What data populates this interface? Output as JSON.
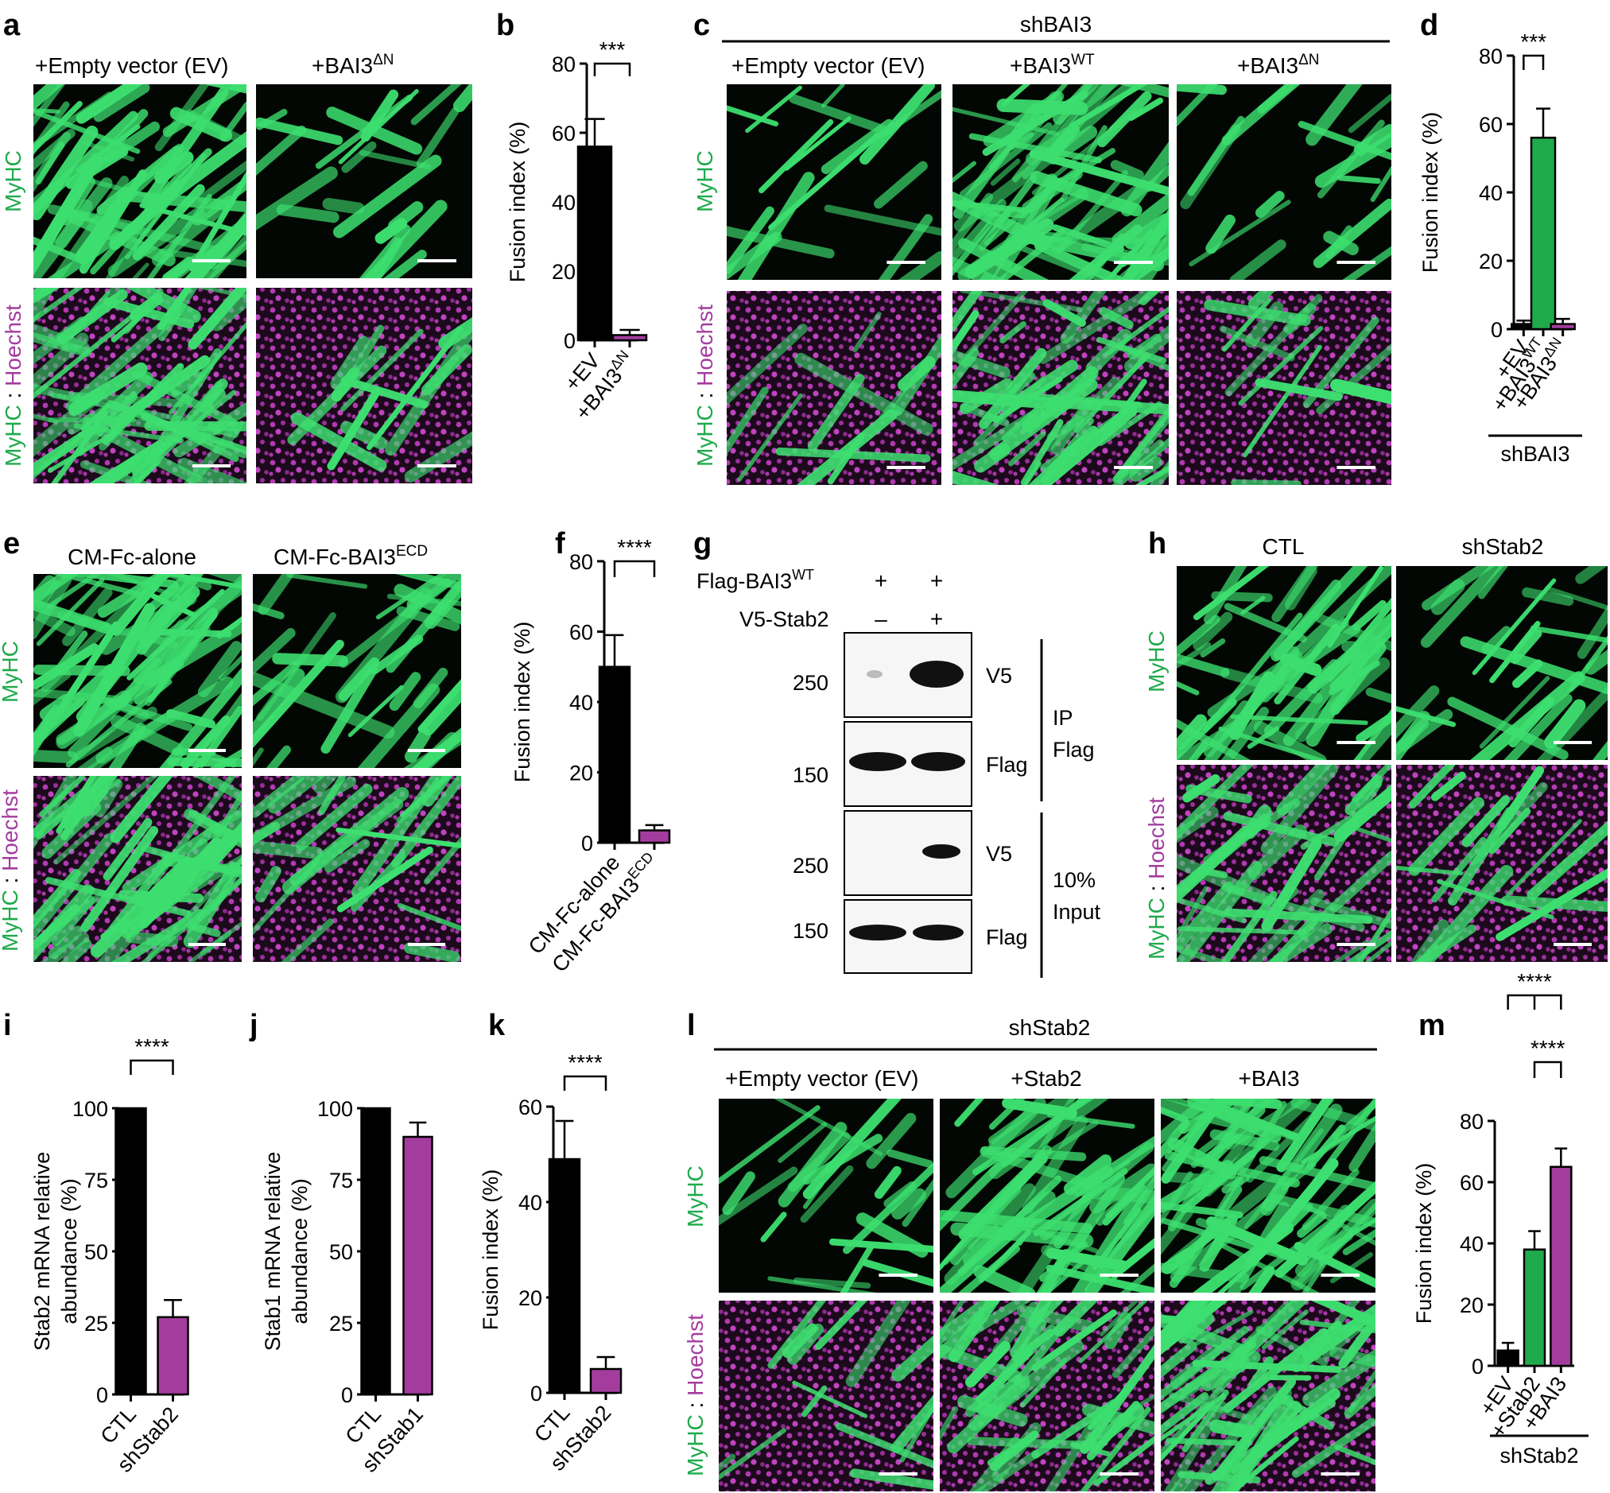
{
  "panel_letters": [
    "a",
    "b",
    "c",
    "d",
    "e",
    "f",
    "g",
    "h",
    "i",
    "j",
    "k",
    "l",
    "m"
  ],
  "colors": {
    "black": "#000000",
    "green": "#1faa4c",
    "magenta": "#a43c9e",
    "micro_green": "#3de070",
    "micro_magenta": "#b23ab2"
  },
  "micrograph": {
    "row_myhc": "MyHC",
    "row_merge_a": "MyHC",
    "row_merge_sep": " : ",
    "row_merge_b": "Hoechst"
  },
  "panel_a": {
    "col1": "+Empty vector (EV)",
    "col2": "+BAI3",
    "col2_sup": "ΔN"
  },
  "panel_c": {
    "header": "shBAI3",
    "col1": "+Empty vector (EV)",
    "col2": "+BAI3",
    "col2_sup": "WT",
    "col3": "+BAI3",
    "col3_sup": "ΔN"
  },
  "panel_e": {
    "col1": "CM-Fc-alone",
    "col2": "CM-Fc-BAI3",
    "col2_sup": "ECD"
  },
  "panel_h": {
    "col1": "CTL",
    "col2": "shStab2"
  },
  "panel_l": {
    "header": "shStab2",
    "col1": "+Empty vector (EV)",
    "col2": "+Stab2",
    "col3": "+BAI3"
  },
  "panel_g": {
    "row1_label": "Flag-BAI3",
    "row1_sup": "WT",
    "row1_marks": [
      "+",
      "+"
    ],
    "row2_label": "V5-Stab2",
    "row2_marks": [
      "–",
      "+"
    ],
    "blot_labels": [
      "V5",
      "Flag",
      "V5",
      "Flag"
    ],
    "mw_labels": [
      "250",
      "150",
      "250",
      "150"
    ],
    "group1": [
      "IP",
      "Flag"
    ],
    "group2": [
      "10%",
      "Input"
    ]
  },
  "chart_data": [
    {
      "panel": "b",
      "type": "bar",
      "ylabel": "Fusion index (%)",
      "ylim": [
        0,
        80
      ],
      "yticks": [
        0,
        20,
        40,
        60,
        80
      ],
      "categories": [
        "+EV",
        "+BAI3"
      ],
      "category_sups": [
        "",
        "ΔN"
      ],
      "values": [
        56,
        1.5
      ],
      "errors": [
        8,
        1.5
      ],
      "colors": [
        "#000000",
        "#a43c9e"
      ],
      "sig": [
        {
          "text": "***",
          "from": 0,
          "to": 1
        }
      ]
    },
    {
      "panel": "d",
      "type": "bar",
      "ylabel": "Fusion index (%)",
      "ylim": [
        0,
        80
      ],
      "yticks": [
        0,
        20,
        40,
        60,
        80
      ],
      "categories": [
        "+EV",
        "+BAI3",
        "+BAI3"
      ],
      "category_sups": [
        "",
        "WT",
        "ΔN"
      ],
      "values": [
        1.5,
        56,
        1.5
      ],
      "errors": [
        1,
        8.5,
        1.5
      ],
      "colors": [
        "#000000",
        "#1faa4c",
        "#a43c9e"
      ],
      "sig": [
        {
          "text": "***",
          "from": 0,
          "to": 1
        }
      ],
      "group_label": "shBAI3"
    },
    {
      "panel": "f",
      "type": "bar",
      "ylabel": "Fusion index (%)",
      "ylim": [
        0,
        80
      ],
      "yticks": [
        0,
        20,
        40,
        60,
        80
      ],
      "categories": [
        "CM-Fc-alone",
        "CM-Fc-BAI3"
      ],
      "category_sups": [
        "",
        "ECD"
      ],
      "values": [
        50,
        3.5
      ],
      "errors": [
        9,
        1.5
      ],
      "colors": [
        "#000000",
        "#a43c9e"
      ],
      "sig": [
        {
          "text": "****",
          "from": 0,
          "to": 1
        }
      ]
    },
    {
      "panel": "i",
      "type": "bar",
      "ylabel": [
        "Stab2 mRNA relative",
        "abundance (%)"
      ],
      "ylim": [
        0,
        100
      ],
      "yticks": [
        0,
        25,
        50,
        75,
        100
      ],
      "categories": [
        "CTL",
        "shStab2"
      ],
      "category_sups": [
        "",
        ""
      ],
      "values": [
        100,
        27
      ],
      "errors": [
        0,
        6
      ],
      "colors": [
        "#000000",
        "#a43c9e"
      ],
      "sig": [
        {
          "text": "****",
          "from": 0,
          "to": 1
        }
      ]
    },
    {
      "panel": "j",
      "type": "bar",
      "ylabel": [
        "Stab1 mRNA relative",
        "abundance (%)"
      ],
      "ylim": [
        0,
        100
      ],
      "yticks": [
        0,
        25,
        50,
        75,
        100
      ],
      "categories": [
        "CTL",
        "shStab1"
      ],
      "category_sups": [
        "",
        ""
      ],
      "values": [
        100,
        90
      ],
      "errors": [
        0,
        5
      ],
      "colors": [
        "#000000",
        "#a43c9e"
      ],
      "sig": []
    },
    {
      "panel": "k",
      "type": "bar",
      "ylabel": "Fusion index (%)",
      "ylim": [
        0,
        60
      ],
      "yticks": [
        0,
        20,
        40,
        60
      ],
      "categories": [
        "CTL",
        "shStab2"
      ],
      "category_sups": [
        "",
        ""
      ],
      "values": [
        49,
        5
      ],
      "errors": [
        8,
        2.5
      ],
      "colors": [
        "#000000",
        "#a43c9e"
      ],
      "sig": [
        {
          "text": "****",
          "from": 0,
          "to": 1
        }
      ]
    },
    {
      "panel": "m",
      "type": "bar",
      "ylabel": "Fusion index (%)",
      "ylim": [
        0,
        80
      ],
      "yticks": [
        0,
        20,
        40,
        60,
        80
      ],
      "categories": [
        "+EV",
        "+Stab2",
        "+BAI3"
      ],
      "category_sups": [
        "",
        "",
        ""
      ],
      "values": [
        5,
        38,
        65
      ],
      "errors": [
        2.5,
        6,
        6
      ],
      "colors": [
        "#000000",
        "#1faa4c",
        "#a43c9e"
      ],
      "sig": [
        {
          "text": "****",
          "from": 0,
          "to": 2,
          "tier": 2
        },
        {
          "text": "****",
          "from": 1,
          "to": 2,
          "tier": 1
        }
      ],
      "group_label": "shStab2"
    }
  ]
}
